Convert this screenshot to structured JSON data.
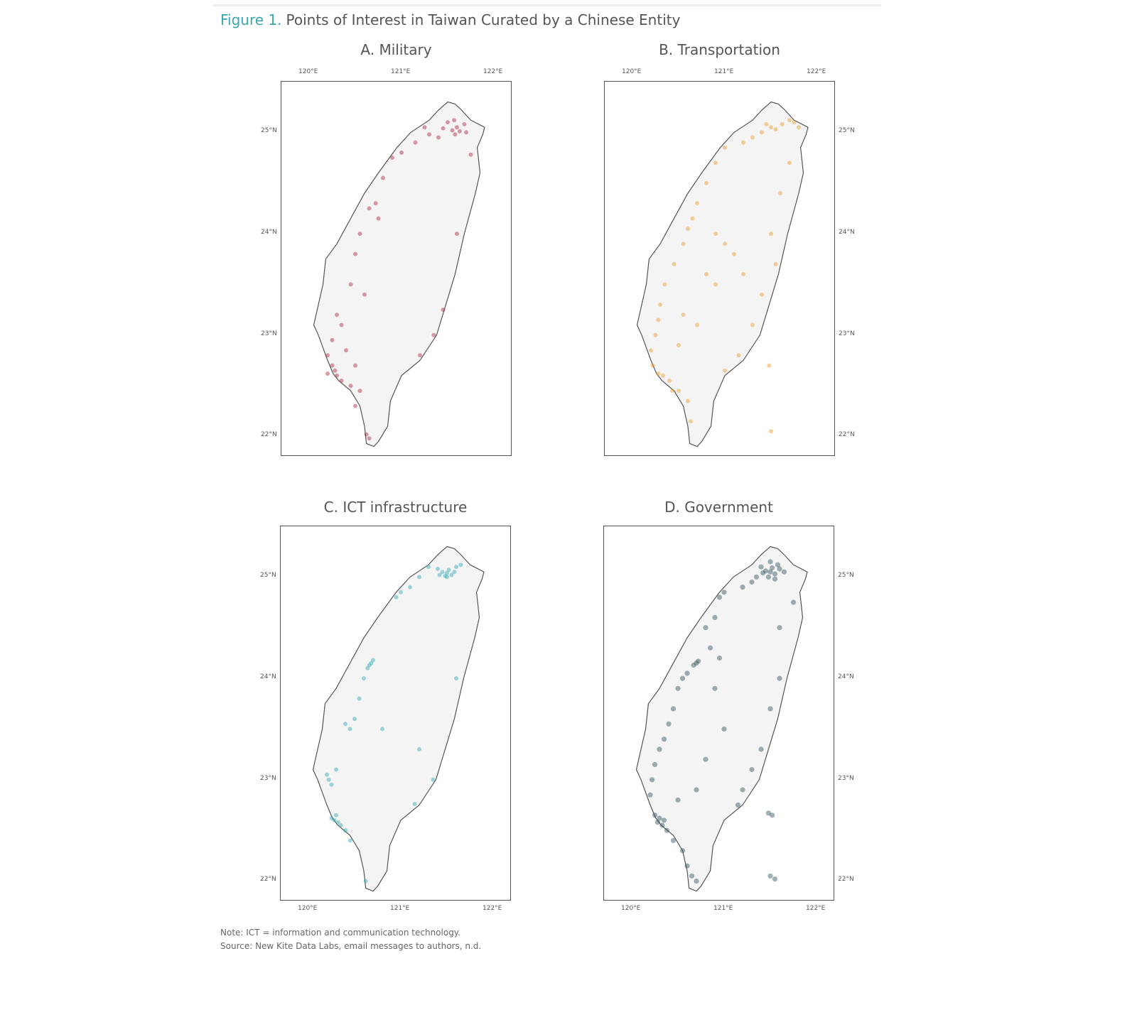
{
  "figure": {
    "label": "Figure 1.",
    "title": "Points of Interest in Taiwan Curated by a Chinese Entity"
  },
  "map_extent": {
    "lon": [
      119.7,
      122.2
    ],
    "lat": [
      21.8,
      25.5
    ]
  },
  "ticks": {
    "lon": [
      "120°E",
      "121°E",
      "122°E"
    ],
    "lat": [
      "25°N",
      "24°N",
      "23°N",
      "22°N"
    ]
  },
  "panels": [
    {
      "id": "military",
      "title": "A. Military",
      "color": "#a8263e",
      "lat_axis": "left",
      "lon_axis": "top",
      "points": [
        [
          121.55,
          25.02
        ],
        [
          121.6,
          25.05
        ],
        [
          121.5,
          25.1
        ],
        [
          121.68,
          25.08
        ],
        [
          121.7,
          25.0
        ],
        [
          121.58,
          24.98
        ],
        [
          121.45,
          25.04
        ],
        [
          121.4,
          24.95
        ],
        [
          121.3,
          24.98
        ],
        [
          121.25,
          25.05
        ],
        [
          121.15,
          24.9
        ],
        [
          121.0,
          24.8
        ],
        [
          120.9,
          24.75
        ],
        [
          121.75,
          24.78
        ],
        [
          121.57,
          25.12
        ],
        [
          121.63,
          25.01
        ],
        [
          120.8,
          24.55
        ],
        [
          120.65,
          24.25
        ],
        [
          120.75,
          24.15
        ],
        [
          120.72,
          24.3
        ],
        [
          120.55,
          24.0
        ],
        [
          120.5,
          23.8
        ],
        [
          120.45,
          23.5
        ],
        [
          121.6,
          24.0
        ],
        [
          121.45,
          23.25
        ],
        [
          120.3,
          23.2
        ],
        [
          120.35,
          23.1
        ],
        [
          120.25,
          22.95
        ],
        [
          120.2,
          22.8
        ],
        [
          120.25,
          22.7
        ],
        [
          120.28,
          22.65
        ],
        [
          120.3,
          22.6
        ],
        [
          120.35,
          22.55
        ],
        [
          120.45,
          22.5
        ],
        [
          120.5,
          22.7
        ],
        [
          120.55,
          22.45
        ],
        [
          120.5,
          22.3
        ],
        [
          120.62,
          22.02
        ],
        [
          120.65,
          21.98
        ],
        [
          121.2,
          22.8
        ],
        [
          121.35,
          23.0
        ],
        [
          120.4,
          22.85
        ],
        [
          120.6,
          23.4
        ],
        [
          120.2,
          22.62
        ]
      ]
    },
    {
      "id": "transportation",
      "title": "B. Transportation",
      "color": "#e89a2c",
      "lat_axis": "right",
      "lon_axis": "top",
      "points": [
        [
          121.5,
          25.05
        ],
        [
          121.55,
          25.03
        ],
        [
          121.62,
          25.08
        ],
        [
          121.7,
          25.12
        ],
        [
          121.4,
          25.0
        ],
        [
          121.3,
          24.95
        ],
        [
          121.2,
          24.9
        ],
        [
          121.0,
          24.85
        ],
        [
          121.45,
          25.08
        ],
        [
          121.75,
          25.1
        ],
        [
          121.8,
          25.05
        ],
        [
          120.9,
          24.7
        ],
        [
          120.8,
          24.5
        ],
        [
          120.7,
          24.3
        ],
        [
          120.65,
          24.15
        ],
        [
          120.6,
          24.05
        ],
        [
          120.55,
          23.9
        ],
        [
          120.45,
          23.7
        ],
        [
          120.35,
          23.5
        ],
        [
          120.3,
          23.3
        ],
        [
          120.28,
          23.15
        ],
        [
          120.25,
          23.0
        ],
        [
          120.2,
          22.85
        ],
        [
          120.22,
          22.7
        ],
        [
          120.28,
          22.62
        ],
        [
          120.33,
          22.6
        ],
        [
          120.4,
          22.55
        ],
        [
          120.5,
          22.45
        ],
        [
          120.6,
          22.35
        ],
        [
          120.63,
          22.15
        ],
        [
          120.9,
          24.0
        ],
        [
          121.0,
          23.9
        ],
        [
          121.1,
          23.8
        ],
        [
          120.8,
          23.6
        ],
        [
          120.9,
          23.5
        ],
        [
          121.2,
          23.6
        ],
        [
          121.5,
          24.0
        ],
        [
          121.55,
          23.7
        ],
        [
          121.4,
          23.4
        ],
        [
          121.3,
          23.1
        ],
        [
          121.15,
          22.8
        ],
        [
          121.0,
          22.65
        ],
        [
          121.48,
          22.7
        ],
        [
          121.5,
          22.05
        ],
        [
          120.43,
          22.45
        ],
        [
          120.5,
          22.9
        ],
        [
          120.55,
          23.2
        ],
        [
          121.6,
          24.4
        ],
        [
          121.7,
          24.7
        ],
        [
          120.7,
          23.1
        ]
      ]
    },
    {
      "id": "ict",
      "title": "C. ICT infrastructure",
      "color": "#2fa7b0",
      "lat_axis": "left",
      "lon_axis": "bottom",
      "points": [
        [
          121.45,
          25.05
        ],
        [
          121.5,
          25.04
        ],
        [
          121.55,
          25.02
        ],
        [
          121.52,
          25.07
        ],
        [
          121.48,
          25.01
        ],
        [
          121.58,
          25.05
        ],
        [
          121.42,
          25.02
        ],
        [
          121.5,
          25.0
        ],
        [
          121.4,
          25.08
        ],
        [
          121.6,
          25.1
        ],
        [
          121.65,
          25.12
        ],
        [
          121.3,
          25.1
        ],
        [
          121.2,
          25.0
        ],
        [
          121.1,
          24.9
        ],
        [
          121.0,
          24.85
        ],
        [
          120.95,
          24.8
        ],
        [
          120.68,
          24.15
        ],
        [
          120.66,
          24.13
        ],
        [
          120.7,
          24.18
        ],
        [
          120.64,
          24.1
        ],
        [
          120.6,
          24.0
        ],
        [
          120.55,
          23.8
        ],
        [
          120.5,
          23.6
        ],
        [
          120.45,
          23.5
        ],
        [
          120.4,
          23.55
        ],
        [
          120.2,
          23.05
        ],
        [
          120.22,
          23.0
        ],
        [
          120.25,
          22.95
        ],
        [
          120.3,
          23.1
        ],
        [
          120.25,
          22.62
        ],
        [
          120.28,
          22.6
        ],
        [
          120.3,
          22.65
        ],
        [
          120.32,
          22.58
        ],
        [
          120.35,
          22.55
        ],
        [
          120.4,
          22.5
        ],
        [
          120.45,
          22.4
        ],
        [
          120.62,
          22.0
        ],
        [
          121.15,
          22.76
        ],
        [
          121.35,
          23.0
        ],
        [
          121.6,
          24.0
        ],
        [
          120.8,
          23.5
        ],
        [
          121.2,
          23.3
        ]
      ]
    },
    {
      "id": "government",
      "title": "D. Government",
      "color": "#2d4f58",
      "lat_axis": "right",
      "lon_axis": "bottom",
      "points": [
        [
          121.5,
          25.05
        ],
        [
          121.55,
          25.03
        ],
        [
          121.45,
          25.06
        ],
        [
          121.52,
          25.09
        ],
        [
          121.6,
          25.08
        ],
        [
          121.48,
          25.0
        ],
        [
          121.42,
          25.04
        ],
        [
          121.58,
          25.12
        ],
        [
          121.65,
          25.05
        ],
        [
          121.35,
          25.0
        ],
        [
          121.3,
          24.95
        ],
        [
          121.5,
          25.15
        ],
        [
          121.55,
          24.98
        ],
        [
          121.4,
          25.1
        ],
        [
          121.2,
          24.9
        ],
        [
          121.0,
          24.85
        ],
        [
          120.95,
          24.8
        ],
        [
          121.75,
          24.75
        ],
        [
          120.9,
          24.6
        ],
        [
          120.8,
          24.5
        ],
        [
          120.7,
          24.15
        ],
        [
          120.67,
          24.13
        ],
        [
          120.72,
          24.17
        ],
        [
          120.55,
          24.0
        ],
        [
          120.6,
          24.05
        ],
        [
          120.5,
          23.9
        ],
        [
          120.45,
          23.7
        ],
        [
          120.4,
          23.55
        ],
        [
          120.35,
          23.4
        ],
        [
          120.3,
          23.3
        ],
        [
          120.25,
          23.15
        ],
        [
          120.22,
          23.0
        ],
        [
          120.2,
          22.85
        ],
        [
          120.25,
          22.65
        ],
        [
          120.3,
          22.62
        ],
        [
          120.28,
          22.58
        ],
        [
          120.33,
          22.55
        ],
        [
          120.35,
          22.6
        ],
        [
          120.38,
          22.5
        ],
        [
          120.45,
          22.4
        ],
        [
          120.55,
          22.3
        ],
        [
          120.6,
          22.15
        ],
        [
          120.65,
          22.05
        ],
        [
          120.7,
          22.0
        ],
        [
          121.15,
          22.75
        ],
        [
          121.2,
          22.9
        ],
        [
          121.3,
          23.1
        ],
        [
          121.4,
          23.3
        ],
        [
          121.5,
          23.7
        ],
        [
          121.6,
          24.0
        ],
        [
          121.48,
          22.67
        ],
        [
          121.52,
          22.65
        ],
        [
          121.5,
          22.05
        ],
        [
          121.55,
          22.02
        ],
        [
          120.9,
          23.9
        ],
        [
          121.0,
          23.5
        ],
        [
          120.8,
          23.2
        ],
        [
          120.7,
          22.9
        ],
        [
          120.5,
          22.8
        ],
        [
          121.6,
          24.5
        ],
        [
          120.85,
          24.3
        ],
        [
          120.95,
          24.2
        ]
      ]
    }
  ],
  "note": "Note: ICT = information and communication technology.",
  "source": "Source: New Kite Data Labs, email messages to authors, n.d."
}
